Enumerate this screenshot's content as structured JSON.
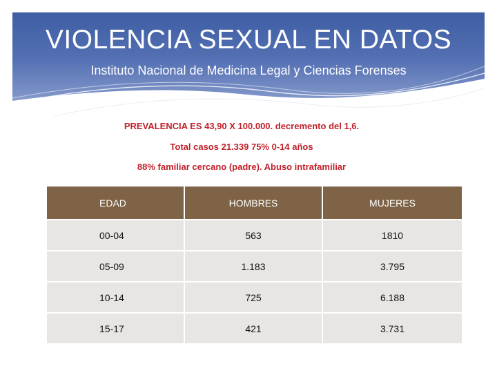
{
  "header": {
    "title": "VIOLENCIA SEXUAL EN DATOS",
    "subtitle": "Instituto Nacional de Medicina Legal y Ciencias Forenses"
  },
  "notes": [
    "PREVALENCIA  ES 43,90 X 100.000. decremento del 1,6.",
    "Total casos 21.339     75% 0-14 años",
    "88% familiar cercano (padre). Abuso intrafamiliar"
  ],
  "table": {
    "headers": [
      "EDAD",
      "HOMBRES",
      "MUJERES"
    ],
    "rows": [
      [
        "00-04",
        "563",
        "1810"
      ],
      [
        "05-09",
        "1.183",
        "3.795"
      ],
      [
        "10-14",
        "725",
        "6.188"
      ],
      [
        "15-17",
        "421",
        "3.731"
      ]
    ]
  },
  "colors": {
    "header_blue": "#3e5da3",
    "note_red": "#c0202a",
    "table_header_brown": "#7e6346",
    "table_cell_gray": "#e8e6e4"
  }
}
